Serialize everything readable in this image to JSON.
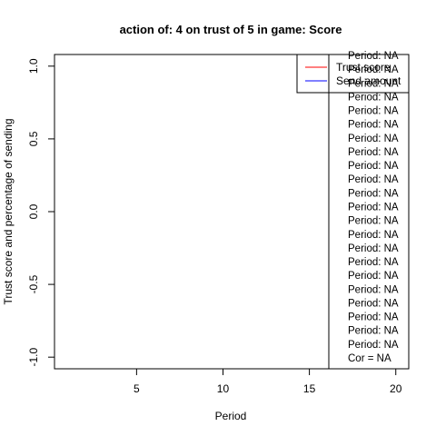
{
  "chart_data": {
    "type": "line",
    "title": "action of:  4  on trust of  5 in game:  Score",
    "xlabel": "Period",
    "ylabel": "Trust score and percentage of sending",
    "xlim": [
      0.25,
      20.75
    ],
    "ylim": [
      -1.08,
      1.08
    ],
    "x_ticks": [
      5,
      10,
      15,
      20
    ],
    "y_ticks": [
      -1.0,
      -0.5,
      0.0,
      0.5,
      1.0
    ],
    "x_tick_labels": [
      "5",
      "10",
      "15",
      "20"
    ],
    "y_tick_labels": [
      "-1.0",
      "-0.5",
      "0.0",
      "0.5",
      "1.0"
    ],
    "grid": false,
    "series": [
      {
        "name": "Trust score",
        "color": "#ff0000",
        "values": []
      },
      {
        "name": "Send amount",
        "color": "#0000ff",
        "values": []
      }
    ],
    "legend": {
      "placement": "top-right",
      "entries": [
        {
          "label": "Trust score",
          "color": "#ff0000"
        },
        {
          "label": "Send amount",
          "color": "#0000ff"
        }
      ]
    },
    "annotation_lines": [
      "Period:  NA",
      "Period:  NA",
      "Period:  NA",
      "Period:  NA",
      "Period:  NA",
      "Period:  NA",
      "Period:  NA",
      "Period:  NA",
      "Period:  NA",
      "Period:  NA",
      "Period:  NA",
      "Period:  NA",
      "Period:  NA",
      "Period:  NA",
      "Period:  NA",
      "Period:  NA",
      "Period:  NA",
      "Period:  NA",
      "Period:  NA",
      "Period:  NA",
      "Period:  NA",
      "Period:  NA",
      "Cor =  NA"
    ]
  }
}
